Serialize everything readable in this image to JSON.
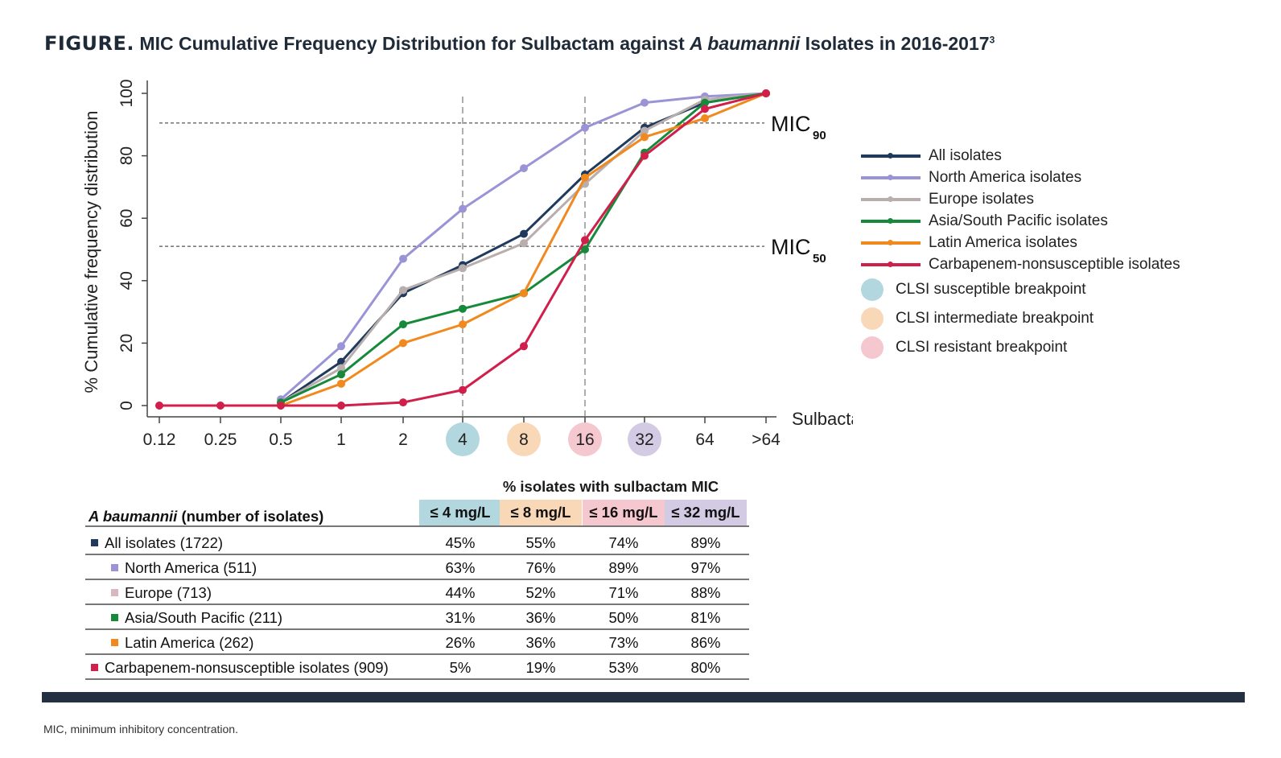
{
  "figure": {
    "label": "FIGURE.",
    "title_part1": "MIC Cumulative Frequency Distribution for Sulbactam against ",
    "title_italic": "A baumannii",
    "title_part2": " Isolates in 2016-2017",
    "title_sup": "3"
  },
  "chart_data": {
    "type": "line",
    "title": "MIC Cumulative Frequency Distribution for Sulbactam against A baumannii Isolates in 2016-2017",
    "xlabel": "Sulbactam MIC",
    "ylabel": "% Cumulative frequency distribution",
    "ylim": [
      0,
      100
    ],
    "yticks": [
      "0",
      "20",
      "40",
      "60",
      "80",
      "100"
    ],
    "categories": [
      "0.12",
      "0.25",
      "0.5",
      "1",
      "2",
      "4",
      "8",
      "16",
      "32",
      "64",
      ">64"
    ],
    "series": [
      {
        "name": "All isolates",
        "color": "#1f3a5c",
        "values": [
          null,
          null,
          1,
          14,
          36,
          45,
          55,
          74,
          89,
          97,
          100
        ]
      },
      {
        "name": "North America isolates",
        "color": "#9a94d6",
        "values": [
          null,
          null,
          2,
          19,
          47,
          63,
          76,
          89,
          97,
          99,
          100
        ]
      },
      {
        "name": "Europe isolates",
        "color": "#b8aeae",
        "values": [
          null,
          null,
          1,
          12,
          37,
          44,
          52,
          71,
          88,
          98,
          100
        ]
      },
      {
        "name": "Asia/South Pacific isolates",
        "color": "#17893a",
        "values": [
          null,
          null,
          1,
          10,
          26,
          31,
          36,
          50,
          81,
          97,
          100
        ]
      },
      {
        "name": "Latin America isolates",
        "color": "#f0891e",
        "values": [
          null,
          null,
          0,
          7,
          20,
          26,
          36,
          73,
          86,
          92,
          100
        ]
      },
      {
        "name": "Carbapenem-nonsusceptible isolates",
        "color": "#d01f4a",
        "values": [
          0,
          0,
          0,
          0,
          1,
          5,
          19,
          53,
          80,
          95,
          100
        ]
      }
    ],
    "reference_lines": [
      {
        "label": "MIC",
        "sub": "90",
        "y": 90.5
      },
      {
        "label": "MIC",
        "sub": "50",
        "y": 51
      }
    ],
    "vertical_lines": [
      "4",
      "16"
    ],
    "highlighted_ticks": [
      {
        "tick": "4",
        "color": "#b3d7de"
      },
      {
        "tick": "8",
        "color": "#f9d8b8"
      },
      {
        "tick": "16",
        "color": "#f5c7cf"
      },
      {
        "tick": "32",
        "color": "#d3cbe4"
      }
    ]
  },
  "legend": {
    "series": [
      {
        "label": "All isolates",
        "color": "#1f3a5c"
      },
      {
        "label": "North America isolates",
        "color": "#9a94d6"
      },
      {
        "label": "Europe isolates",
        "color": "#b8aeae"
      },
      {
        "label": "Asia/South Pacific isolates",
        "color": "#17893a"
      },
      {
        "label": "Latin America isolates",
        "color": "#f0891e"
      },
      {
        "label": "Carbapenem-nonsusceptible isolates",
        "color": "#d01f4a"
      }
    ],
    "breakpoints": [
      {
        "label": "CLSI susceptible breakpoint",
        "color": "#b3d7de"
      },
      {
        "label": "CLSI intermediate breakpoint",
        "color": "#f9d8b8"
      },
      {
        "label": "CLSI resistant breakpoint",
        "color": "#f5c7cf"
      }
    ]
  },
  "table": {
    "header_top": "% isolates with sulbactam MIC",
    "row_header_italic": "A baumannii",
    "row_header_rest": " (number of isolates)",
    "columns": [
      {
        "label": "≤ 4 mg/L",
        "color": "#b3d7de"
      },
      {
        "label": "≤ 8 mg/L",
        "color": "#f9d8b8"
      },
      {
        "label": "≤ 16 mg/L",
        "color": "#f5c7cf"
      },
      {
        "label": "≤ 32 mg/L",
        "color": "#d3cbe4"
      }
    ],
    "rows": [
      {
        "name": "All isolates (1722)",
        "color": "#1f3a5c",
        "indent": false,
        "values": [
          "45%",
          "55%",
          "74%",
          "89%"
        ]
      },
      {
        "name": "North America (511)",
        "color": "#9a94d6",
        "indent": true,
        "values": [
          "63%",
          "76%",
          "89%",
          "97%"
        ]
      },
      {
        "name": "Europe (713)",
        "color": "#d8b8bd",
        "indent": true,
        "values": [
          "44%",
          "52%",
          "71%",
          "88%"
        ]
      },
      {
        "name": "Asia/South Pacific (211)",
        "color": "#17893a",
        "indent": true,
        "values": [
          "31%",
          "36%",
          "50%",
          "81%"
        ]
      },
      {
        "name": "Latin America (262)",
        "color": "#f0891e",
        "indent": true,
        "values": [
          "26%",
          "36%",
          "73%",
          "86%"
        ]
      },
      {
        "name": "Carbapenem-nonsusceptible isolates (909)",
        "color": "#d01f4a",
        "indent": false,
        "values": [
          "5%",
          "19%",
          "53%",
          "80%"
        ]
      }
    ]
  },
  "footnote": "MIC, minimum inhibitory concentration."
}
